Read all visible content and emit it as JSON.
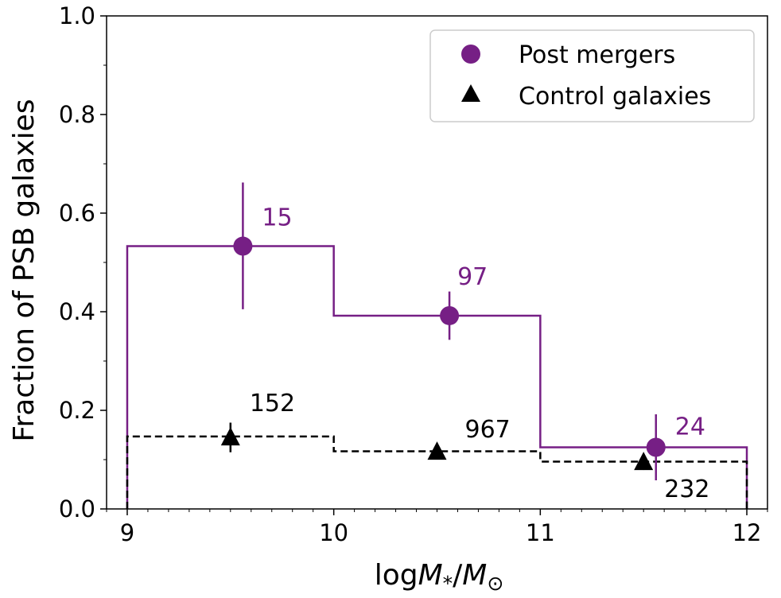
{
  "chart_data": {
    "type": "scatter",
    "xlabel_parts": {
      "log": "log",
      "m1": "M",
      "sub1": "*",
      "slash": "/",
      "m2": "M",
      "sub2": "⊙"
    },
    "ylabel": "Fraction of PSB galaxies",
    "xlim": [
      8.9,
      12.1
    ],
    "ylim": [
      0,
      1.0
    ],
    "x_ticks": [
      "9",
      "10",
      "11",
      "12"
    ],
    "y_ticks": [
      "0.0",
      "0.2",
      "0.4",
      "0.6",
      "0.8",
      "1.0"
    ],
    "grid": false,
    "legend_position": "top-right",
    "bin_edges": [
      9,
      10,
      11,
      12
    ],
    "series": [
      {
        "name": "Post mergers",
        "color": "#761f85",
        "marker": "circle",
        "step_style": "solid",
        "x": [
          9.56,
          10.56,
          11.56
        ],
        "y": [
          0.533,
          0.392,
          0.125
        ],
        "yerr_low": [
          0.405,
          0.343,
          0.058
        ],
        "yerr_high": [
          0.662,
          0.441,
          0.192
        ],
        "step_values": [
          0.533,
          0.392,
          0.125
        ],
        "counts": [
          "15",
          "97",
          "24"
        ]
      },
      {
        "name": "Control galaxies",
        "color": "#000000",
        "marker": "triangle",
        "step_style": "dashed",
        "x": [
          9.5,
          10.5,
          11.5
        ],
        "y": [
          0.145,
          0.116,
          0.095
        ],
        "yerr_low": [
          0.115,
          0.106,
          0.079
        ],
        "yerr_high": [
          0.175,
          0.126,
          0.111
        ],
        "step_values": [
          0.147,
          0.117,
          0.096
        ],
        "counts": [
          "152",
          "967",
          "232"
        ]
      }
    ]
  }
}
